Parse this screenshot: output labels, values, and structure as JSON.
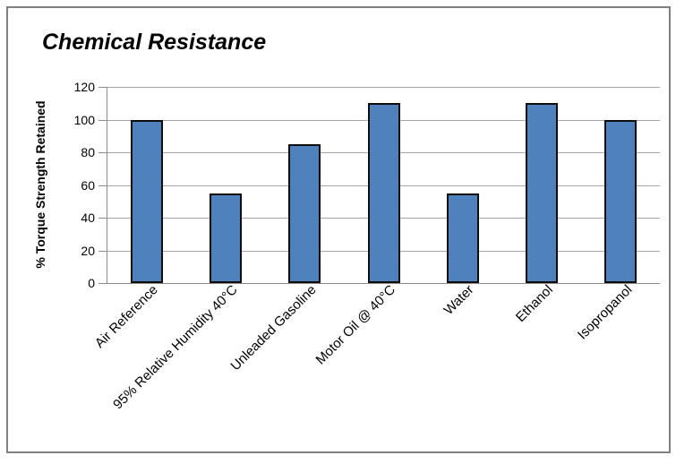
{
  "chart_data": {
    "type": "bar",
    "title": "Chemical Resistance",
    "xlabel": "",
    "ylabel": "% Torque Strength Retained",
    "categories": [
      "Air Reference",
      "95% Relative Humidity 40°C",
      "Unleaded Gasoline",
      "Motor Oil @ 40°C",
      "Water",
      "Ethanol",
      "Isopropanol"
    ],
    "values": [
      100,
      55,
      85,
      110,
      55,
      110,
      100
    ],
    "ylim": [
      0,
      120
    ],
    "yticks": [
      0,
      20,
      40,
      60,
      80,
      100,
      120
    ],
    "grid": "horizontal-major",
    "legend": "none",
    "bar_color": "#4f81bd",
    "bar_border_color": "#0d0d0d",
    "gridline_color": "#a6a6a6",
    "axis_color": "#8c8c8c",
    "frame_border_color": "#808080"
  }
}
